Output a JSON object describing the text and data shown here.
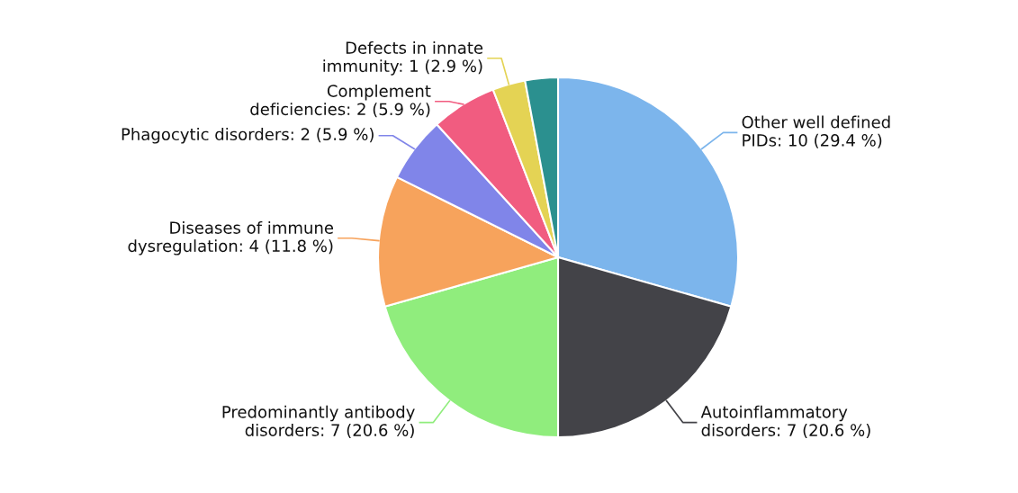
{
  "chart_data": {
    "type": "pie",
    "categories": [
      "Other well defined PIDs",
      "Autoinflammatory disorders",
      "Predominantly antibody disorders",
      "Diseases of immune dysregulation",
      "Phagocytic disorders",
      "Complement deficiencies",
      "Defects in innate immunity",
      null
    ],
    "values": [
      10,
      7,
      7,
      4,
      2,
      2,
      1,
      1
    ],
    "value_labels": [
      "10 (29.4 %)",
      "7 (20.6 %)",
      "7 (20.6 %)",
      "4 (11.8 %)",
      "2 (5.9 %)",
      "2 (5.9 %)",
      "1 (2.9 %)",
      null
    ],
    "colors": [
      "#7cb5ec",
      "#434348",
      "#90ed7d",
      "#f7a35c",
      "#8085e9",
      "#f15c80",
      "#e4d354",
      "#2b908f"
    ],
    "legend": false
  }
}
